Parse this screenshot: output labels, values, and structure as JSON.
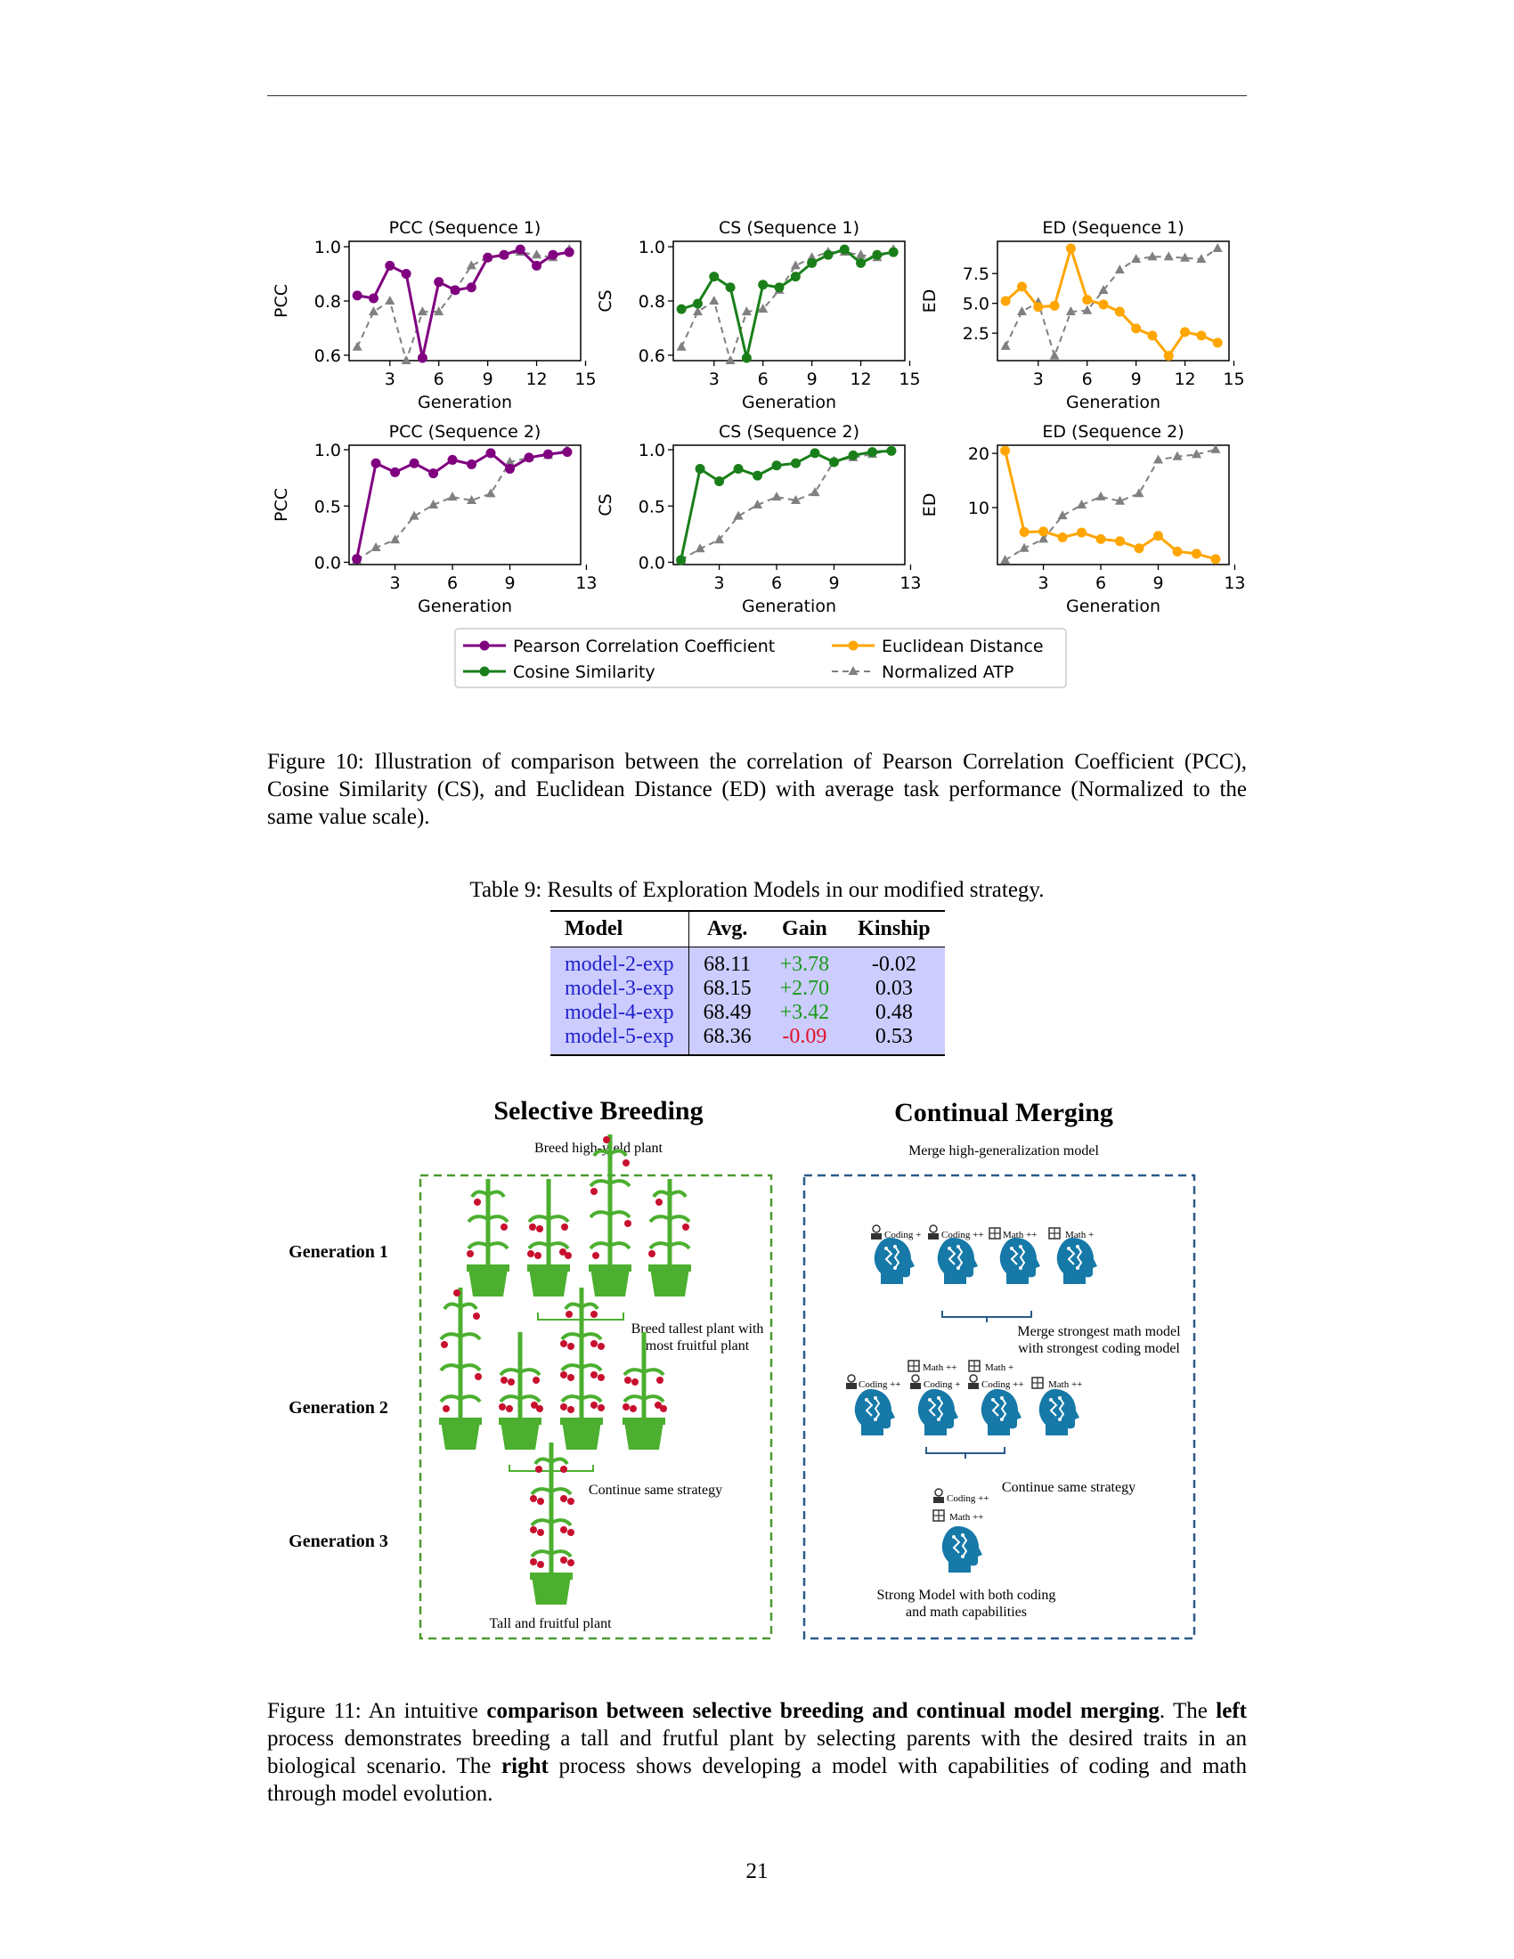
{
  "chart_data": [
    {
      "type": "line",
      "title": "PCC (Sequence 1)",
      "xlabel": "Generation",
      "ylabel": "PCC",
      "xlim": [
        0.5,
        14.7
      ],
      "ylim": [
        0.58,
        1.02
      ],
      "xticks": [
        3,
        6,
        9,
        12,
        15
      ],
      "yticks": [
        "0.6",
        "0.8",
        "1.0"
      ],
      "ytick_values": [
        0.6,
        0.8,
        1.0
      ],
      "series": [
        {
          "name": "Pearson Correlation Coefficient",
          "color": "#800080",
          "style": "solid-circle",
          "x": [
            1,
            2,
            3,
            4,
            5,
            6,
            7,
            8,
            9,
            10,
            11,
            12,
            13,
            14
          ],
          "y": [
            0.82,
            0.81,
            0.93,
            0.9,
            0.59,
            0.87,
            0.84,
            0.85,
            0.96,
            0.97,
            0.99,
            0.93,
            0.97,
            0.98
          ]
        },
        {
          "name": "Normalized ATP",
          "color": "#808080",
          "style": "dashed-triangle",
          "x": [
            1,
            2,
            3,
            4,
            5,
            6,
            7,
            8,
            9,
            10,
            11,
            12,
            13,
            14
          ],
          "y": [
            0.63,
            0.76,
            0.8,
            0.58,
            0.76,
            0.76,
            0.84,
            0.93,
            0.96,
            0.97,
            0.98,
            0.97,
            0.96,
            0.99
          ]
        }
      ]
    },
    {
      "type": "line",
      "title": "CS (Sequence 1)",
      "xlabel": "Generation",
      "ylabel": "CS",
      "xlim": [
        0.5,
        14.7
      ],
      "ylim": [
        0.58,
        1.02
      ],
      "xticks": [
        3,
        6,
        9,
        12,
        15
      ],
      "yticks": [
        "0.6",
        "0.8",
        "1.0"
      ],
      "ytick_values": [
        0.6,
        0.8,
        1.0
      ],
      "series": [
        {
          "name": "Cosine Similarity",
          "color": "#1a7f1a",
          "style": "solid-circle",
          "x": [
            1,
            2,
            3,
            4,
            5,
            6,
            7,
            8,
            9,
            10,
            11,
            12,
            13,
            14
          ],
          "y": [
            0.77,
            0.79,
            0.89,
            0.85,
            0.59,
            0.86,
            0.85,
            0.89,
            0.94,
            0.97,
            0.99,
            0.94,
            0.97,
            0.98
          ]
        },
        {
          "name": "Normalized ATP",
          "color": "#808080",
          "style": "dashed-triangle",
          "x": [
            1,
            2,
            3,
            4,
            5,
            6,
            7,
            8,
            9,
            10,
            11,
            12,
            13,
            14
          ],
          "y": [
            0.63,
            0.76,
            0.8,
            0.58,
            0.76,
            0.77,
            0.84,
            0.93,
            0.96,
            0.98,
            0.98,
            0.97,
            0.96,
            0.99
          ]
        }
      ]
    },
    {
      "type": "line",
      "title": "ED (Sequence 1)",
      "xlabel": "Generation",
      "ylabel": "ED",
      "xlim": [
        0.5,
        14.7
      ],
      "ylim": [
        0.2,
        10.2
      ],
      "xticks": [
        3,
        6,
        9,
        12,
        15
      ],
      "yticks": [
        "2.5",
        "5.0",
        "7.5"
      ],
      "ytick_values": [
        2.5,
        5.0,
        7.5
      ],
      "series": [
        {
          "name": "Euclidean Distance",
          "color": "#ffa500",
          "style": "solid-circle",
          "x": [
            1,
            2,
            3,
            4,
            5,
            6,
            7,
            8,
            9,
            10,
            11,
            12,
            13,
            14
          ],
          "y": [
            5.2,
            6.4,
            4.7,
            4.8,
            9.6,
            5.3,
            4.9,
            4.3,
            2.9,
            2.3,
            0.6,
            2.6,
            2.3,
            1.7
          ]
        },
        {
          "name": "Normalized ATP",
          "color": "#808080",
          "style": "dashed-triangle",
          "x": [
            1,
            2,
            3,
            4,
            5,
            6,
            7,
            8,
            9,
            10,
            11,
            12,
            13,
            14
          ],
          "y": [
            1.4,
            4.3,
            5.1,
            0.6,
            4.3,
            4.4,
            6.1,
            7.8,
            8.7,
            8.9,
            8.9,
            8.8,
            8.7,
            9.6
          ]
        }
      ]
    },
    {
      "type": "line",
      "title": "PCC (Sequence 2)",
      "xlabel": "Generation",
      "ylabel": "PCC",
      "xlim": [
        0.6,
        12.7
      ],
      "ylim": [
        -0.02,
        1.04
      ],
      "xticks": [
        3,
        6,
        9,
        13
      ],
      "yticks": [
        "0.0",
        "0.5",
        "1.0"
      ],
      "ytick_values": [
        0,
        0.5,
        1.0
      ],
      "series": [
        {
          "name": "Pearson Correlation Coefficient",
          "color": "#800080",
          "style": "solid-circle",
          "x": [
            1,
            2,
            3,
            4,
            5,
            6,
            7,
            8,
            9,
            10,
            11,
            12
          ],
          "y": [
            0.03,
            0.88,
            0.8,
            0.88,
            0.79,
            0.91,
            0.87,
            0.97,
            0.83,
            0.93,
            0.96,
            0.98
          ]
        },
        {
          "name": "Normalized ATP",
          "color": "#808080",
          "style": "dashed-triangle",
          "x": [
            1,
            2,
            3,
            4,
            5,
            6,
            7,
            8,
            9,
            10,
            11,
            12
          ],
          "y": [
            0.02,
            0.13,
            0.2,
            0.41,
            0.51,
            0.58,
            0.55,
            0.61,
            0.89,
            0.93,
            0.95,
            1.0
          ]
        }
      ]
    },
    {
      "type": "line",
      "title": "CS (Sequence 2)",
      "xlabel": "Generation",
      "ylabel": "CS",
      "xlim": [
        0.6,
        12.7
      ],
      "ylim": [
        -0.02,
        1.04
      ],
      "xticks": [
        3,
        6,
        9,
        13
      ],
      "yticks": [
        "0.0",
        "0.5",
        "1.0"
      ],
      "ytick_values": [
        0,
        0.5,
        1.0
      ],
      "series": [
        {
          "name": "Cosine Similarity",
          "color": "#1a7f1a",
          "style": "solid-circle",
          "x": [
            1,
            2,
            3,
            4,
            5,
            6,
            7,
            8,
            9,
            10,
            11,
            12
          ],
          "y": [
            0.02,
            0.83,
            0.72,
            0.83,
            0.77,
            0.86,
            0.88,
            0.97,
            0.89,
            0.95,
            0.98,
            0.99
          ]
        },
        {
          "name": "Normalized ATP",
          "color": "#808080",
          "style": "dashed-triangle",
          "x": [
            1,
            2,
            3,
            4,
            5,
            6,
            7,
            8,
            9,
            10,
            11,
            12
          ],
          "y": [
            0.02,
            0.12,
            0.2,
            0.41,
            0.51,
            0.58,
            0.55,
            0.62,
            0.9,
            0.93,
            0.96,
            1.0
          ]
        }
      ]
    },
    {
      "type": "line",
      "title": "ED (Sequence 2)",
      "xlabel": "Generation",
      "ylabel": "ED",
      "xlim": [
        0.6,
        12.7
      ],
      "ylim": [
        -0.5,
        21.5
      ],
      "xticks": [
        3,
        6,
        9,
        13
      ],
      "yticks": [
        "10",
        "20"
      ],
      "ytick_values": [
        10,
        20
      ],
      "series": [
        {
          "name": "Euclidean Distance",
          "color": "#ffa500",
          "style": "solid-circle",
          "x": [
            1,
            2,
            3,
            4,
            5,
            6,
            7,
            8,
            9,
            10,
            11,
            12
          ],
          "y": [
            20.5,
            5.5,
            5.6,
            4.5,
            5.4,
            4.2,
            3.8,
            2.5,
            4.8,
            1.9,
            1.5,
            0.5
          ]
        },
        {
          "name": "Normalized ATP",
          "color": "#808080",
          "style": "dashed-triangle",
          "x": [
            1,
            2,
            3,
            4,
            5,
            6,
            7,
            8,
            9,
            10,
            11,
            12
          ],
          "y": [
            0.3,
            2.5,
            4.2,
            8.5,
            10.5,
            12.0,
            11.2,
            12.6,
            18.8,
            19.4,
            19.8,
            20.7
          ]
        }
      ]
    }
  ],
  "legend": {
    "items": [
      {
        "label": "Pearson Correlation Coefficient",
        "color": "#800080",
        "style": "solid-circle"
      },
      {
        "label": "Euclidean Distance",
        "color": "#ffa500",
        "style": "solid-circle"
      },
      {
        "label": "Cosine Similarity",
        "color": "#1a7f1a",
        "style": "solid-circle"
      },
      {
        "label": "Normalized ATP",
        "color": "#808080",
        "style": "dashed-triangle"
      }
    ]
  },
  "figure10_caption": "Figure 10: Illustration of comparison between the correlation of Pearson Correlation Coefficient (PCC), Cosine Similarity (CS), and Euclidean Distance (ED) with average task performance (Normalized to the same value scale).",
  "table9": {
    "title": "Table 9: Results of Exploration Models in our modified strategy.",
    "headers": [
      "Model",
      "Avg.",
      "Gain",
      "Kinship"
    ],
    "rows": [
      {
        "model": "model-2-exp",
        "avg": "68.11",
        "gain": "+3.78",
        "kinship": "-0.02",
        "gain_sign": "pos"
      },
      {
        "model": "model-3-exp",
        "avg": "68.15",
        "gain": "+2.70",
        "kinship": "0.03",
        "gain_sign": "pos"
      },
      {
        "model": "model-4-exp",
        "avg": "68.49",
        "gain": "+3.42",
        "kinship": "0.48",
        "gain_sign": "pos"
      },
      {
        "model": "model-5-exp",
        "avg": "68.36",
        "gain": "-0.09",
        "kinship": "0.53",
        "gain_sign": "neg"
      }
    ]
  },
  "figure11": {
    "left_title": "Selective Breeding",
    "left_subtitle": "Breed high-yield plant",
    "right_title": "Continual Merging",
    "right_subtitle": "Merge high-generalization model",
    "generations": [
      "Generation 1",
      "Generation 2",
      "Generation 3"
    ],
    "left_notes": [
      "Breed tallest plant with",
      "most fruitful plant",
      "Continue same strategy",
      "Tall and fruitful plant"
    ],
    "right_notes": [
      "Merge strongest math model",
      "with strongest coding model",
      "Continue same strategy",
      "Strong Model with both coding",
      "and math capabilities"
    ],
    "gen1_labels": [
      "Coding +",
      "Coding ++",
      "Math ++",
      "Math +"
    ],
    "gen2_top_labels": [
      "Math ++",
      "Math +"
    ],
    "gen2_bottom_labels": [
      "Coding ++",
      "Coding +",
      "Coding ++",
      "Math ++"
    ],
    "gen3_labels": [
      "Coding ++",
      "Math ++"
    ],
    "colors": {
      "plant": "#4caf2f",
      "fruit": "#c8102e",
      "head": "#1679a8",
      "left_border": "#4a9a2e",
      "right_border": "#2a5a8a"
    }
  },
  "figure11_caption": {
    "p1": "Figure 11: An intuitive ",
    "b1": "comparison between selective breeding and continual model merging",
    "p2": ". The ",
    "b2": "left",
    "p3": " process demonstrates breeding a tall and frutful plant by selecting parents with the desired traits in an biological scenario. The ",
    "b3": "right",
    "p4": " process shows developing a model with capabilities of coding and math through model evolution."
  },
  "page_number": "21"
}
